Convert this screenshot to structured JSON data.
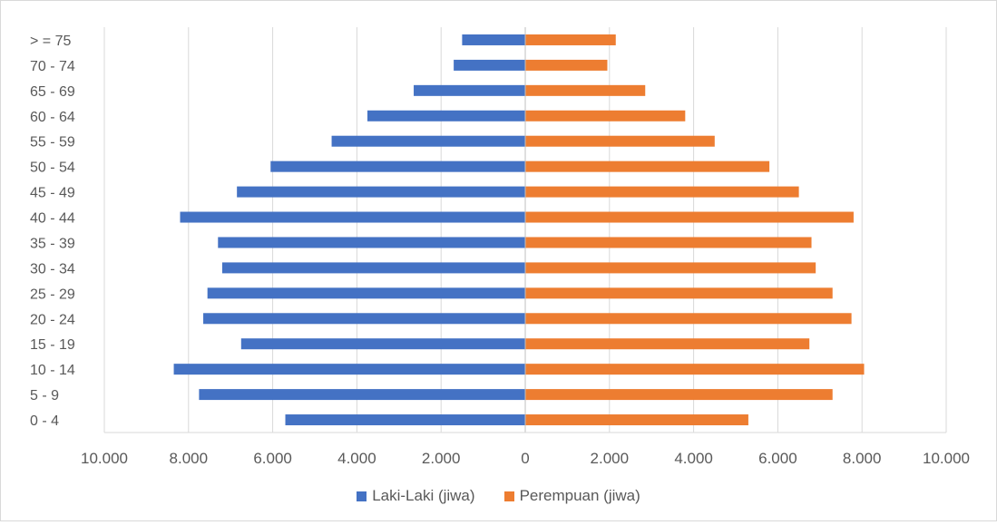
{
  "chart_data": {
    "type": "bar",
    "orientation": "horizontal",
    "variant": "population-pyramid",
    "categories": [
      "0 - 4",
      "5 - 9",
      "10 - 14",
      "15 - 19",
      "20 - 24",
      "25 - 29",
      "30 - 34",
      "35 - 39",
      "40 - 44",
      "45 - 49",
      "50 - 54",
      "55 - 59",
      "60 - 64",
      "65 - 69",
      "70 - 74",
      "> = 75"
    ],
    "series": [
      {
        "name": "Laki-Laki (jiwa)",
        "color": "#4472c4",
        "side": "left",
        "values": [
          5700,
          7750,
          8350,
          6750,
          7650,
          7550,
          7200,
          7300,
          8200,
          6850,
          6050,
          4600,
          3750,
          2650,
          1700,
          1500
        ]
      },
      {
        "name": "Perempuan (jiwa)",
        "color": "#ed7d31",
        "side": "right",
        "values": [
          5300,
          7300,
          8050,
          6750,
          7750,
          7300,
          6900,
          6800,
          7800,
          6500,
          5800,
          4500,
          3800,
          2850,
          1950,
          2150
        ]
      }
    ],
    "xlim": [
      -10000,
      10000
    ],
    "x_ticks": [
      -10000,
      -8000,
      -6000,
      -4000,
      -2000,
      0,
      2000,
      4000,
      6000,
      8000,
      10000
    ],
    "x_tick_labels": [
      "10.000",
      "8.000",
      "6.000",
      "4.000",
      "2.000",
      "0",
      "2.000",
      "4.000",
      "6.000",
      "8.000",
      "10.000"
    ],
    "grid": "vertical",
    "legend": "bottom",
    "title": "",
    "xlabel": "",
    "ylabel": ""
  }
}
